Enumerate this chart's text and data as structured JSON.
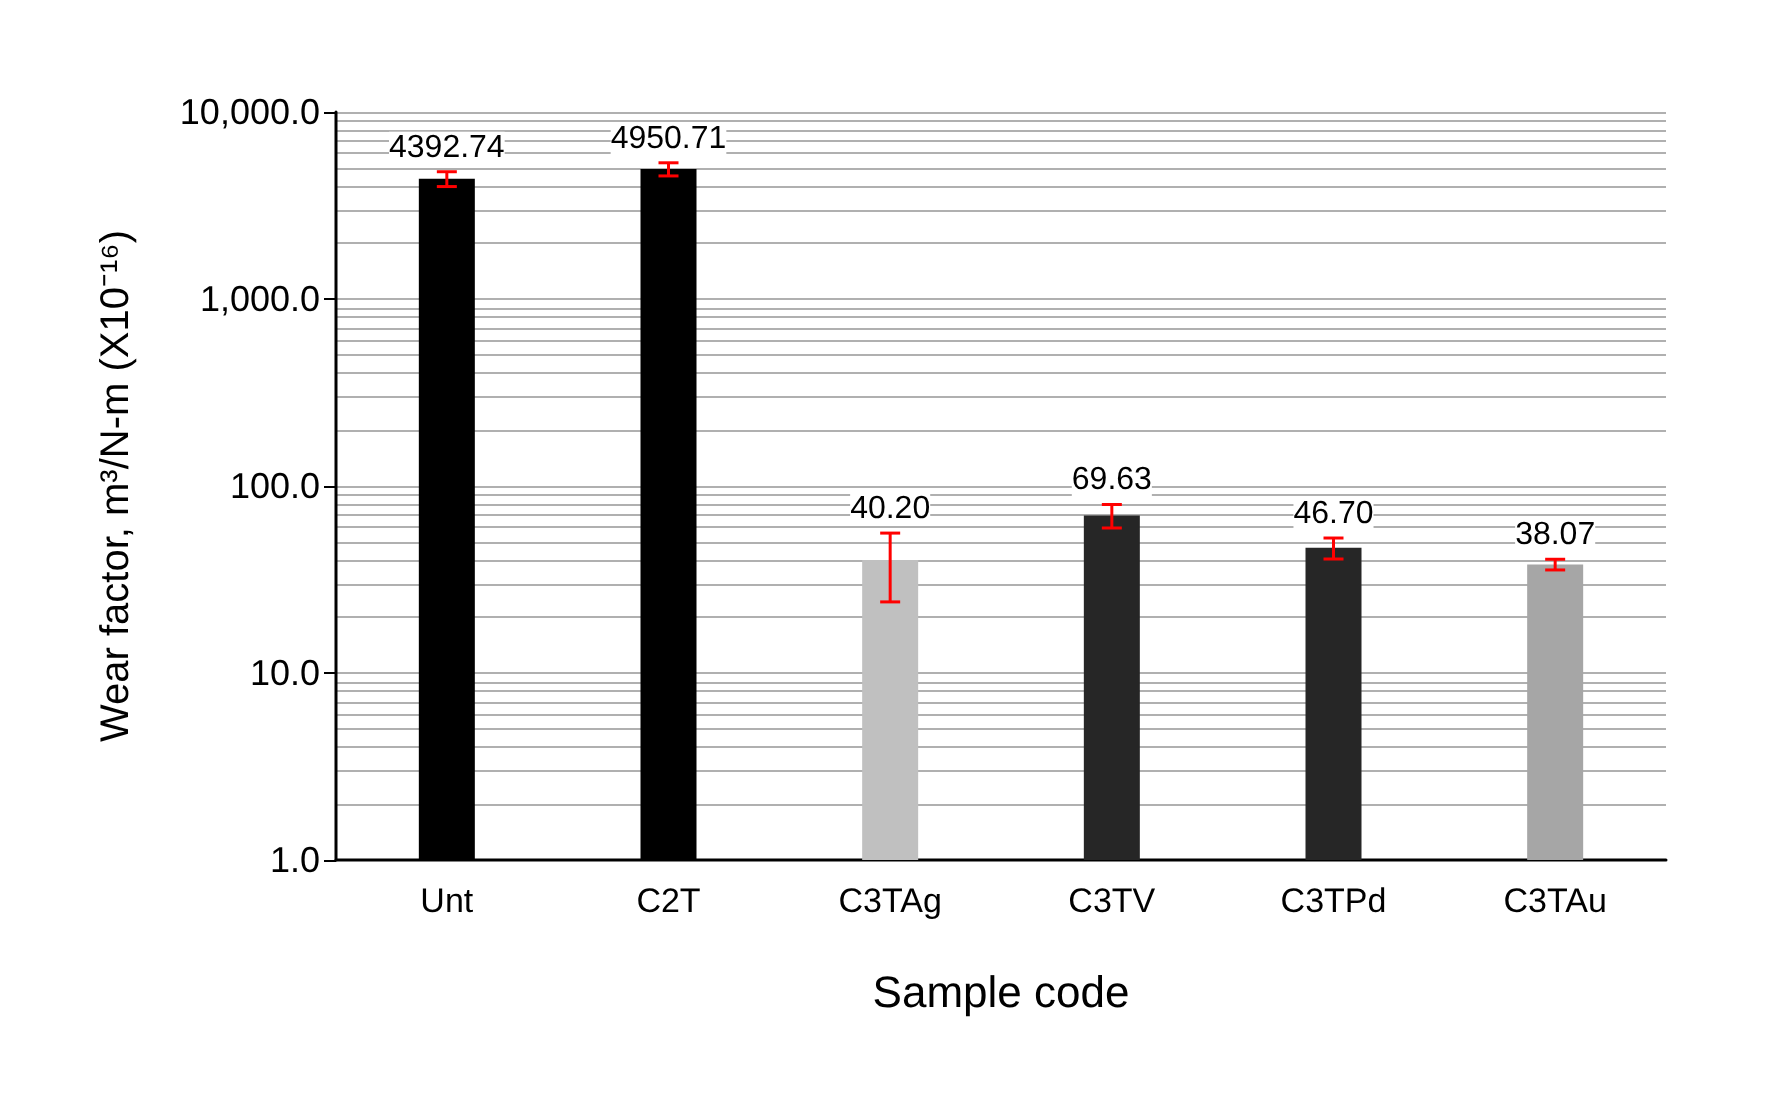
{
  "chart_data": {
    "type": "bar",
    "xlabel": "Sample code",
    "ylabel": "Wear factor, m³/N-m (X10⁻¹⁶)",
    "categories": [
      "Unt",
      "C2T",
      "C3TAg",
      "C3TV",
      "C3TPd",
      "C3TAu"
    ],
    "values": [
      4392.74,
      4950.71,
      40.2,
      69.63,
      46.7,
      38.07
    ],
    "colors": [
      "#000000",
      "#000000",
      "#c0c0c0",
      "#262626",
      "#262626",
      "#a6a6a6"
    ],
    "errors": [
      400,
      400,
      [
        24,
        56
      ],
      10,
      6,
      2.5
    ],
    "value_labels": [
      "4392.74",
      "4950.71",
      "40.20",
      "69.63",
      "46.70",
      "38.07"
    ],
    "log": true,
    "ylim": [
      1,
      10000
    ],
    "yticks": [
      {
        "value": 1,
        "label": "1.0"
      },
      {
        "value": 10,
        "label": "10.0"
      },
      {
        "value": 100,
        "label": "100.0"
      },
      {
        "value": 1000,
        "label": "1,000.0"
      },
      {
        "value": 10000,
        "label": "10,000.0"
      }
    ],
    "grid": true
  }
}
